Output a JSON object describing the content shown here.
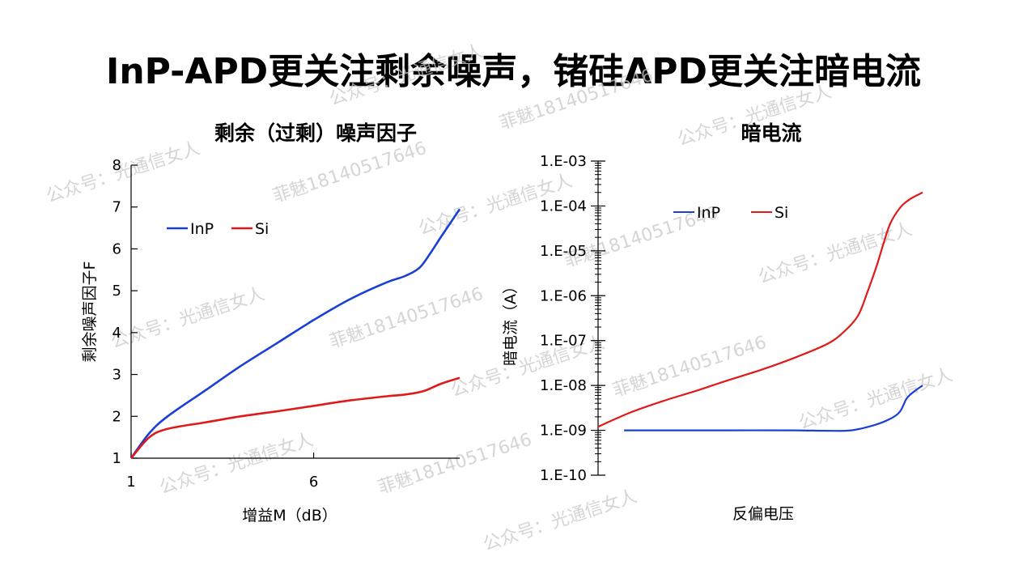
{
  "slide": {
    "title": "InP-APD更关注剩余噪声，锗硅APD更关注暗电流"
  },
  "watermarks": [
    "公众号：光通信女人",
    "菲魅18140517646"
  ],
  "colors": {
    "InP": "#1a3fd6",
    "Si": "#e01919"
  },
  "chart_data": [
    {
      "type": "line",
      "title": "剩余（过剩）噪声因子",
      "xlabel": "增益M（dB）",
      "ylabel": "剩余噪声因子F",
      "x_ticks": [
        "1",
        "6"
      ],
      "xlim": [
        1,
        10
      ],
      "ylim": [
        1,
        8
      ],
      "y_ticks": [
        1,
        2,
        3,
        4,
        5,
        6,
        7,
        8
      ],
      "legend": "top-left",
      "series": [
        {
          "name": "InP",
          "x": [
            1.0,
            1.5,
            2.0,
            3.0,
            4.0,
            5.0,
            6.0,
            7.0,
            8.0,
            8.5,
            8.9,
            9.2,
            9.5,
            10.0
          ],
          "y": [
            1.0,
            1.6,
            2.0,
            2.6,
            3.2,
            3.75,
            4.3,
            4.8,
            5.2,
            5.35,
            5.55,
            5.9,
            6.3,
            6.95
          ]
        },
        {
          "name": "Si",
          "x": [
            1.0,
            1.5,
            2.0,
            3.0,
            4.0,
            5.0,
            6.0,
            7.0,
            8.0,
            8.5,
            9.0,
            9.5,
            10.0
          ],
          "y": [
            1.0,
            1.5,
            1.7,
            1.85,
            2.0,
            2.12,
            2.25,
            2.38,
            2.48,
            2.52,
            2.6,
            2.78,
            2.92
          ]
        }
      ]
    },
    {
      "type": "line",
      "title": "暗电流",
      "xlabel": "反偏电压",
      "ylabel": "暗电流（A）",
      "yscale": "log",
      "ylim": [
        1e-10,
        0.001
      ],
      "y_ticks": [
        "1.E-10",
        "1.E-09",
        "1.E-08",
        "1.E-07",
        "1.E-06",
        "1.E-05",
        "1.E-04",
        "1.E-03"
      ],
      "legend": "top-left",
      "series": [
        {
          "name": "InP",
          "x": [
            0.08,
            0.2,
            0.4,
            0.6,
            0.7,
            0.78,
            0.85,
            0.9,
            0.93,
            0.95,
            0.97,
            1.0
          ],
          "y": [
            1e-09,
            1e-09,
            1e-09,
            1e-09,
            9.8e-10,
            1e-09,
            1.3e-09,
            1.8e-09,
            2.6e-09,
            5e-09,
            7e-09,
            1e-08
          ]
        },
        {
          "name": "Si",
          "x": [
            0.0,
            0.1,
            0.2,
            0.3,
            0.4,
            0.5,
            0.6,
            0.7,
            0.75,
            0.8,
            0.83,
            0.86,
            0.88,
            0.9,
            0.93,
            0.96,
            1.0
          ],
          "y": [
            1.2e-09,
            2.5e-09,
            4.5e-09,
            7.5e-09,
            1.3e-08,
            2.2e-08,
            4e-08,
            8e-08,
            1.4e-07,
            3.5e-07,
            1.2e-06,
            5e-06,
            1.5e-05,
            4e-05,
            9e-05,
            0.00014,
            0.0002
          ]
        }
      ]
    }
  ]
}
